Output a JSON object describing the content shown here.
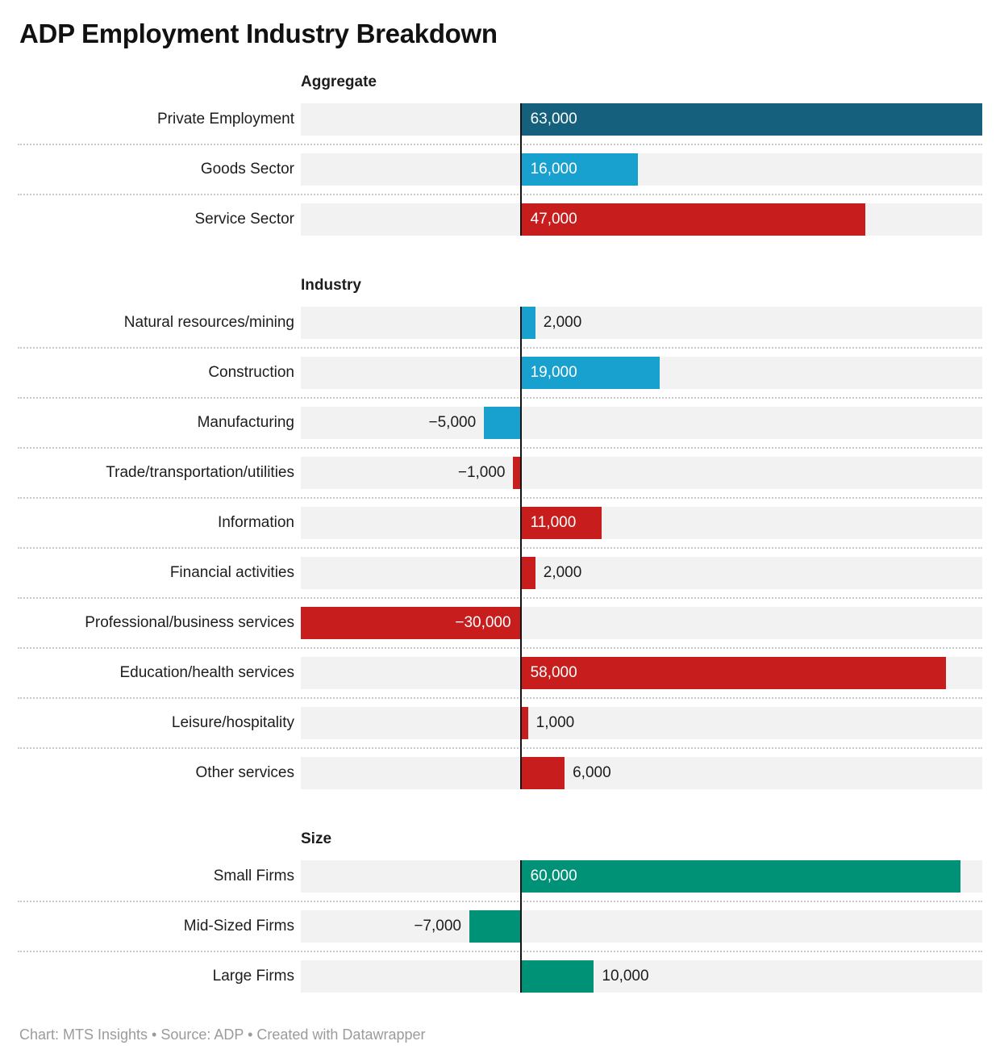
{
  "title": "ADP Employment Industry Breakdown",
  "footer": "Chart: MTS Insights • Source: ADP • Created with Datawrapper",
  "chart_data": {
    "type": "bar",
    "orientation": "horizontal",
    "axis": {
      "min": -30000,
      "max": 63000,
      "gridlines": false,
      "zero_line": true
    },
    "legend": "none",
    "colors": {
      "dark_blue": "#15617d",
      "light_blue": "#18a0ce",
      "red": "#c71e1d",
      "teal": "#009276",
      "track": "#f2f2f2",
      "text": "#1d1d1d",
      "value_inside": "#ffffff"
    },
    "groups": [
      {
        "title": "Aggregate",
        "rows": [
          {
            "label": "Private Employment",
            "value": 63000,
            "value_label": "63,000",
            "color": "dark_blue",
            "label_placement": "inside"
          },
          {
            "label": "Goods Sector",
            "value": 16000,
            "value_label": "16,000",
            "color": "light_blue",
            "label_placement": "inside"
          },
          {
            "label": "Service Sector",
            "value": 47000,
            "value_label": "47,000",
            "color": "red",
            "label_placement": "inside"
          }
        ]
      },
      {
        "title": "Industry",
        "rows": [
          {
            "label": "Natural resources/mining",
            "value": 2000,
            "value_label": "2,000",
            "color": "light_blue",
            "label_placement": "outside"
          },
          {
            "label": "Construction",
            "value": 19000,
            "value_label": "19,000",
            "color": "light_blue",
            "label_placement": "inside"
          },
          {
            "label": "Manufacturing",
            "value": -5000,
            "value_label": "−5,000",
            "color": "light_blue",
            "label_placement": "outside"
          },
          {
            "label": "Trade/transportation/utilities",
            "value": -1000,
            "value_label": "−1,000",
            "color": "red",
            "label_placement": "outside"
          },
          {
            "label": "Information",
            "value": 11000,
            "value_label": "11,000",
            "color": "red",
            "label_placement": "inside"
          },
          {
            "label": "Financial activities",
            "value": 2000,
            "value_label": "2,000",
            "color": "red",
            "label_placement": "outside"
          },
          {
            "label": "Professional/business services",
            "value": -30000,
            "value_label": "−30,000",
            "color": "red",
            "label_placement": "inside"
          },
          {
            "label": "Education/health services",
            "value": 58000,
            "value_label": "58,000",
            "color": "red",
            "label_placement": "inside"
          },
          {
            "label": "Leisure/hospitality",
            "value": 1000,
            "value_label": "1,000",
            "color": "red",
            "label_placement": "outside"
          },
          {
            "label": "Other services",
            "value": 6000,
            "value_label": "6,000",
            "color": "red",
            "label_placement": "outside"
          }
        ]
      },
      {
        "title": "Size",
        "rows": [
          {
            "label": "Small Firms",
            "value": 60000,
            "value_label": "60,000",
            "color": "teal",
            "label_placement": "inside"
          },
          {
            "label": "Mid-Sized Firms",
            "value": -7000,
            "value_label": "−7,000",
            "color": "teal",
            "label_placement": "outside"
          },
          {
            "label": "Large Firms",
            "value": 10000,
            "value_label": "10,000",
            "color": "teal",
            "label_placement": "outside"
          }
        ]
      }
    ]
  }
}
